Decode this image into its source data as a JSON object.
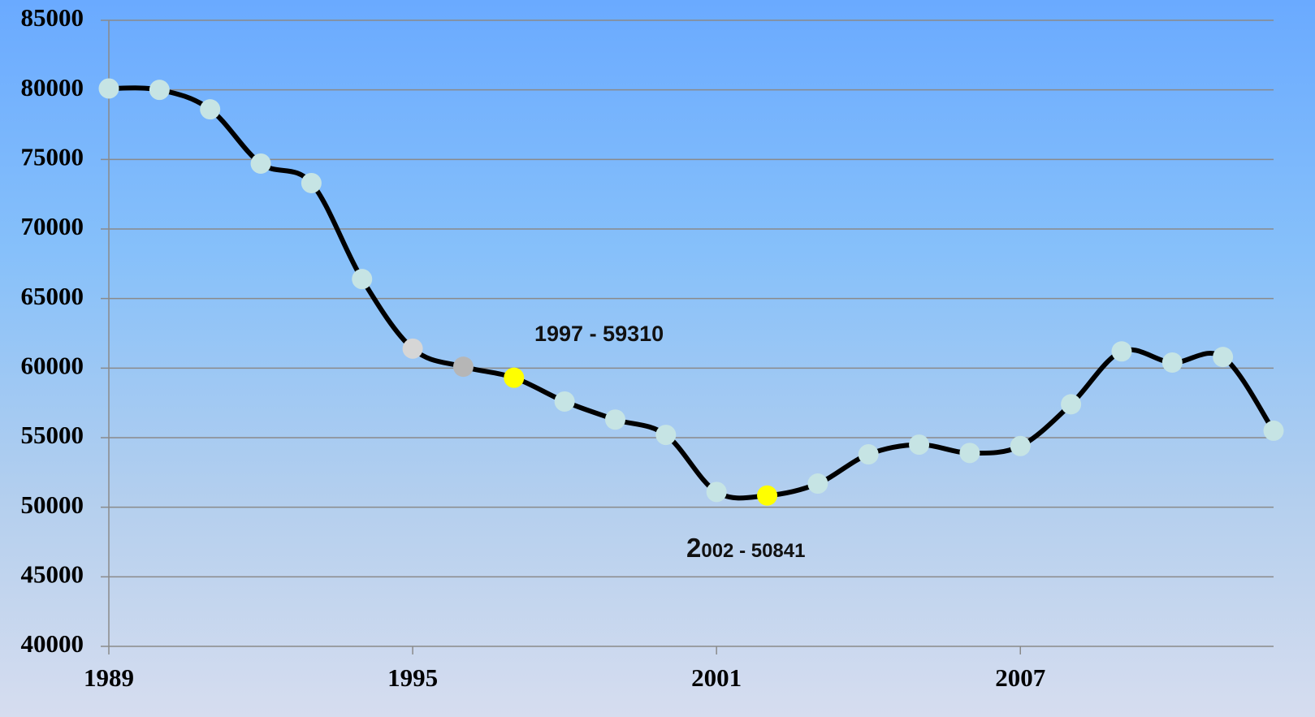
{
  "chart_data": {
    "type": "line",
    "x": [
      1989,
      1990,
      1991,
      1992,
      1993,
      1994,
      1995,
      1996,
      1997,
      1998,
      1999,
      2000,
      2001,
      2002,
      2003,
      2004,
      2005,
      2006,
      2007,
      2008,
      2009,
      2010,
      2011,
      2012
    ],
    "series": [
      {
        "color": "#000000",
        "values": [
          80100,
          80000,
          78600,
          74700,
          73300,
          66400,
          61400,
          60100,
          59310,
          57600,
          56300,
          55200,
          51100,
          50841,
          51700,
          53800,
          54500,
          53900,
          54400,
          57400,
          61200,
          60400,
          60800,
          55500
        ],
        "point_colors": [
          "#c6e4e4",
          "#c6e4e4",
          "#c6e4e4",
          "#c6e4e4",
          "#c6e4e4",
          "#c6e4e4",
          "#d6d6d6",
          "#b6b6b6",
          "#ffff00",
          "#c6e4e4",
          "#c6e4e4",
          "#c6e4e4",
          "#c6e4e4",
          "#ffff00",
          "#c6e4e4",
          "#c6e4e4",
          "#c6e4e4",
          "#c6e4e4",
          "#c6e4e4",
          "#c6e4e4",
          "#c6e4e4",
          "#c6e4e4",
          "#c6e4e4",
          "#c6e4e4"
        ]
      }
    ],
    "annotations": [
      "1997 - 59310",
      "2002 - 50841"
    ],
    "xlim": [
      1989,
      2012
    ],
    "xticks": [
      1989,
      1995,
      2001,
      2007
    ],
    "ylim": [
      40000,
      85000
    ],
    "yticks": [
      40000,
      45000,
      50000,
      55000,
      60000,
      65000,
      70000,
      75000,
      80000,
      85000
    ],
    "grid": true,
    "smooth": true
  }
}
